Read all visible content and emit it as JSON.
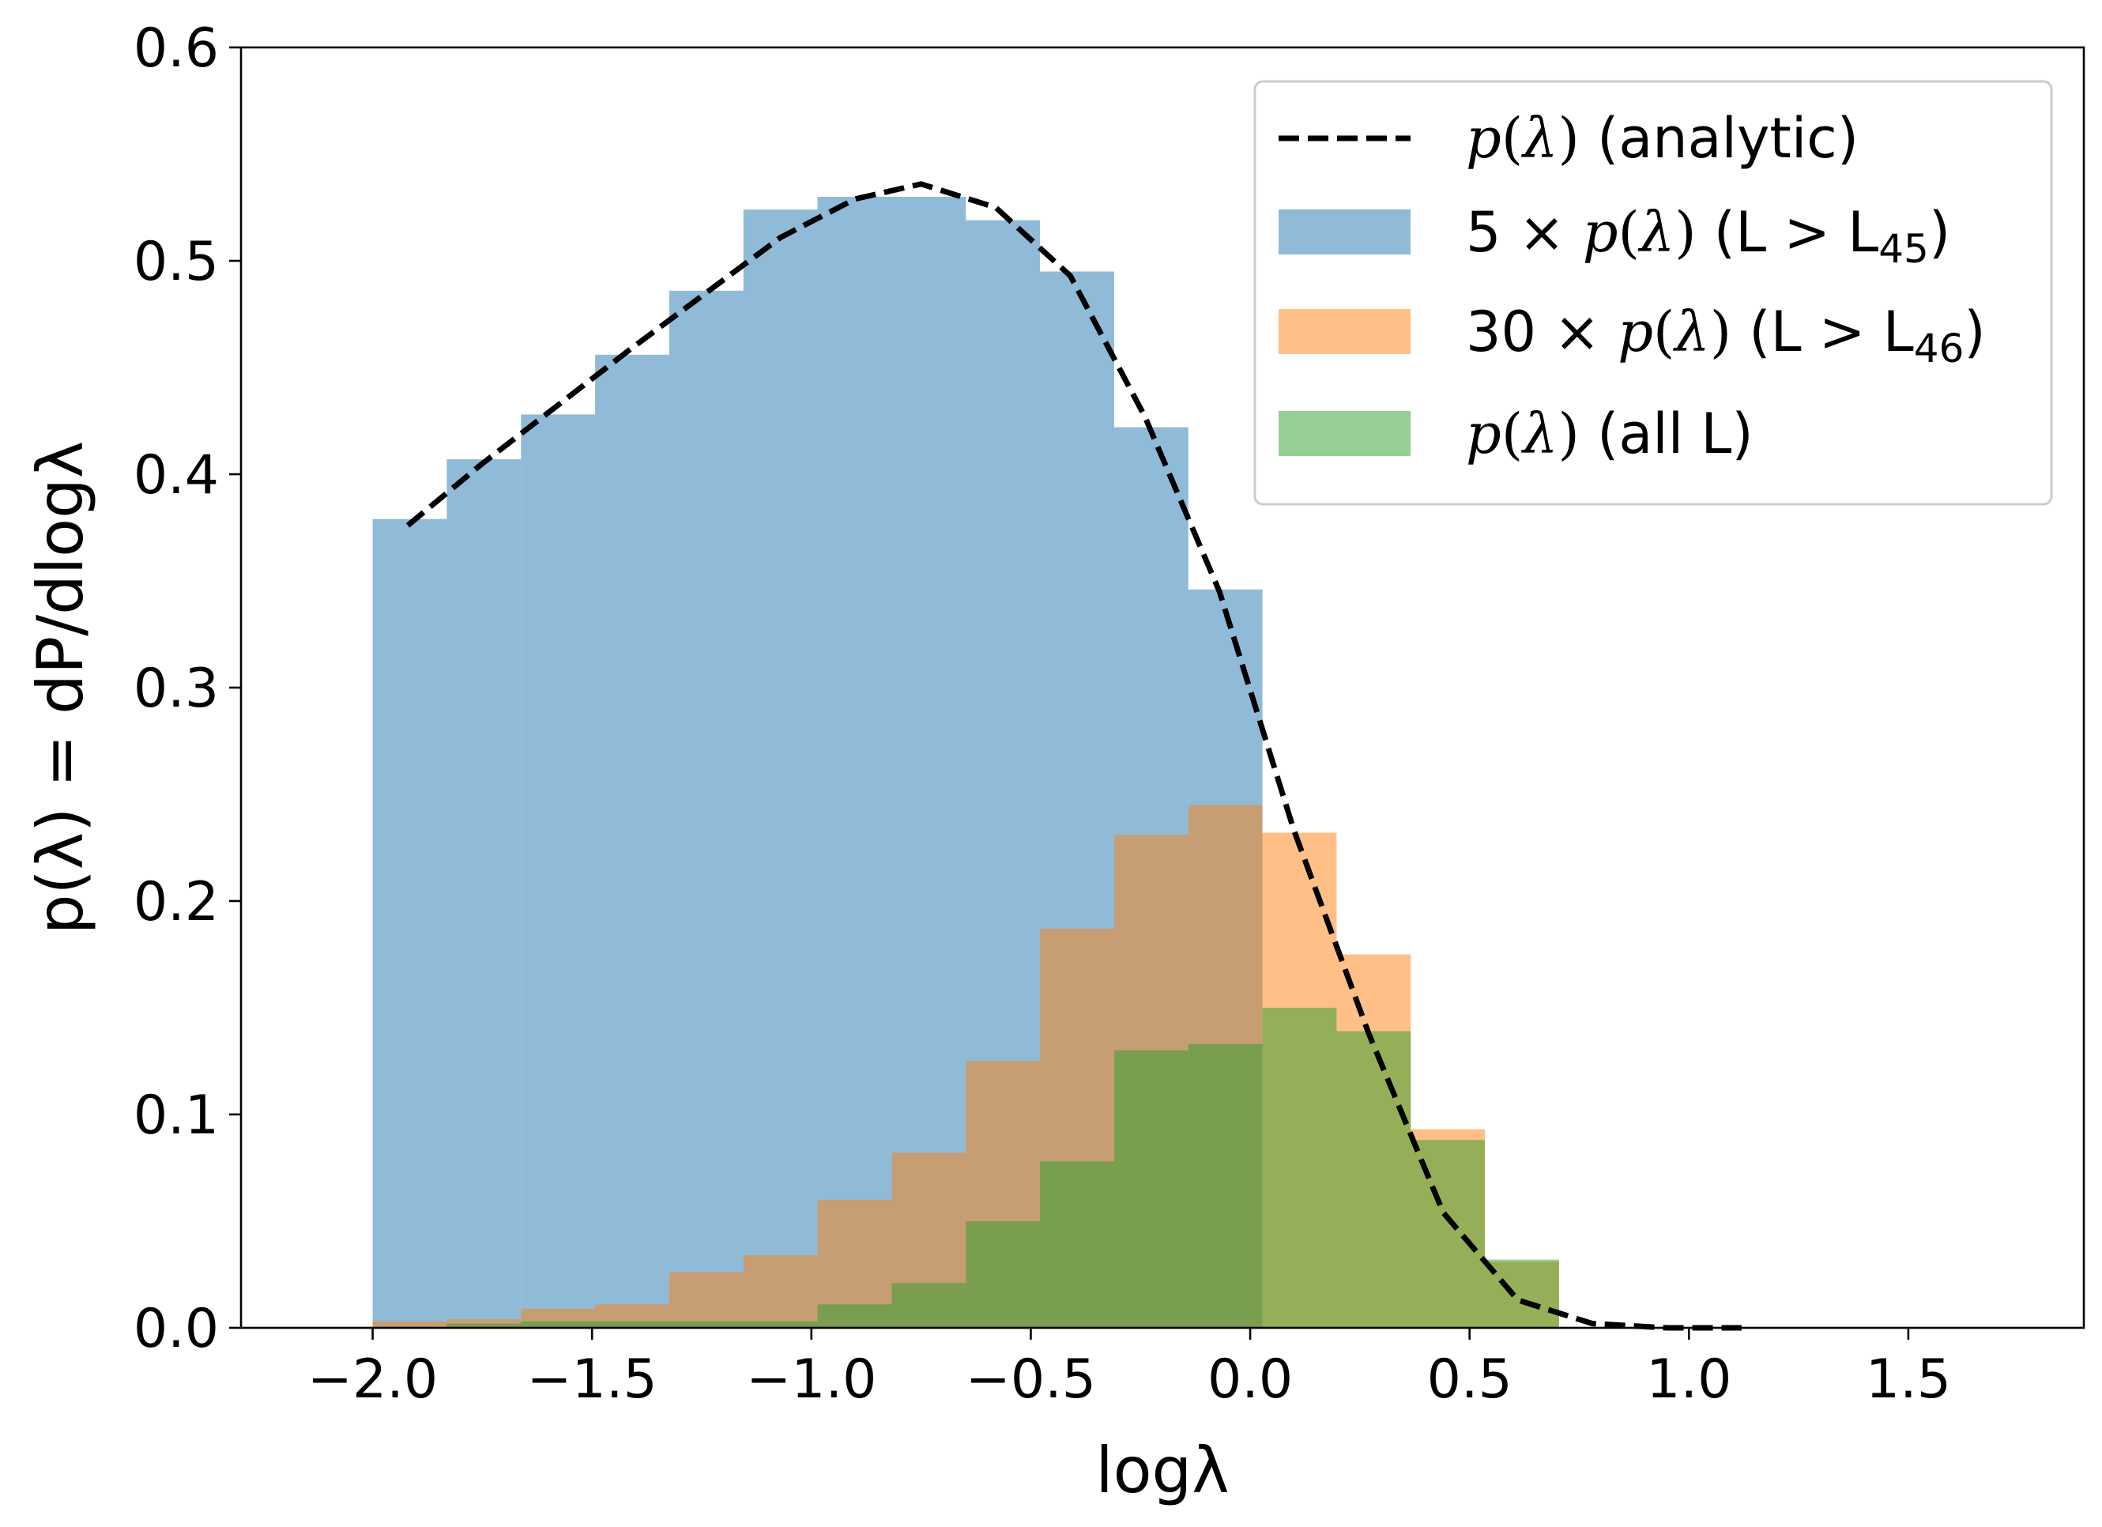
{
  "chart_data": {
    "type": "histogram",
    "xlabel": "logλ",
    "ylabel": "p(λ) = dP/dlogλ",
    "xlim": [
      -2.3,
      1.9
    ],
    "ylim": [
      0,
      0.6
    ],
    "xticks": [
      "−2.0",
      "−1.5",
      "−1.0",
      "−0.5",
      "0.0",
      "0.5",
      "1.0",
      "1.5"
    ],
    "xtick_values": [
      -2.0,
      -1.5,
      -1.0,
      -0.5,
      0.0,
      0.5,
      1.0,
      1.5
    ],
    "yticks": [
      "0.0",
      "0.1",
      "0.2",
      "0.3",
      "0.4",
      "0.5",
      "0.6"
    ],
    "ytick_values": [
      0.0,
      0.1,
      0.2,
      0.3,
      0.4,
      0.5,
      0.6
    ],
    "bin_edges": [
      -2.0,
      -1.831,
      -1.662,
      -1.493,
      -1.324,
      -1.155,
      -0.986,
      -0.817,
      -0.648,
      -0.479,
      -0.31,
      -0.141,
      0.028,
      0.197,
      0.366,
      0.535,
      0.704
    ],
    "legend_position": "upper right",
    "series": [
      {
        "name": "p(λ) (all L)",
        "kind": "bar",
        "color": "#1f77b4",
        "opacity": 0.5,
        "values": [
          0.379,
          0.407,
          0.428,
          0.456,
          0.486,
          0.524,
          0.53,
          0.53,
          0.519,
          0.495,
          0.422,
          0.346,
          0.0,
          0.0,
          0.0,
          0.0
        ]
      },
      {
        "name": "5 × p(λ) (L > L45)",
        "kind": "bar",
        "color": "#ff7f0e",
        "opacity": 0.5,
        "values": [
          0.003,
          0.004,
          0.009,
          0.011,
          0.026,
          0.034,
          0.06,
          0.082,
          0.125,
          0.187,
          0.231,
          0.245,
          0.232,
          0.175,
          0.093,
          0.031
        ]
      },
      {
        "name": "30 × p(λ) (L > L46)",
        "kind": "bar",
        "color": "#2ca02c",
        "opacity": 0.5,
        "values": [
          0.0,
          0.002,
          0.003,
          0.003,
          0.003,
          0.003,
          0.011,
          0.021,
          0.05,
          0.078,
          0.13,
          0.133,
          0.15,
          0.139,
          0.088,
          0.032
        ]
      },
      {
        "name": "p(λ) (analytic)",
        "kind": "line",
        "style": "dashed",
        "color": "#000000",
        "x": [
          -1.92,
          -1.75,
          -1.58,
          -1.41,
          -1.24,
          -1.07,
          -0.9,
          -0.75,
          -0.58,
          -0.41,
          -0.24,
          -0.07,
          0.1,
          0.27,
          0.44,
          0.61,
          0.78,
          0.95,
          1.12
        ],
        "y": [
          0.376,
          0.405,
          0.432,
          0.459,
          0.485,
          0.511,
          0.529,
          0.536,
          0.525,
          0.493,
          0.427,
          0.345,
          0.233,
          0.138,
          0.054,
          0.013,
          0.002,
          0.0,
          0.0
        ]
      }
    ]
  },
  "legend": {
    "items": [
      {
        "prefix": "",
        "suffix": " (analytic)",
        "sub": "",
        "close": ""
      },
      {
        "prefix": "5 × ",
        "suffix": " (L > L",
        "sub": "45",
        "close": ")"
      },
      {
        "prefix": "30 × ",
        "suffix": " (L > L",
        "sub": "46",
        "close": ")"
      },
      {
        "prefix": "",
        "suffix": " (all L)",
        "sub": "",
        "close": ""
      }
    ]
  }
}
